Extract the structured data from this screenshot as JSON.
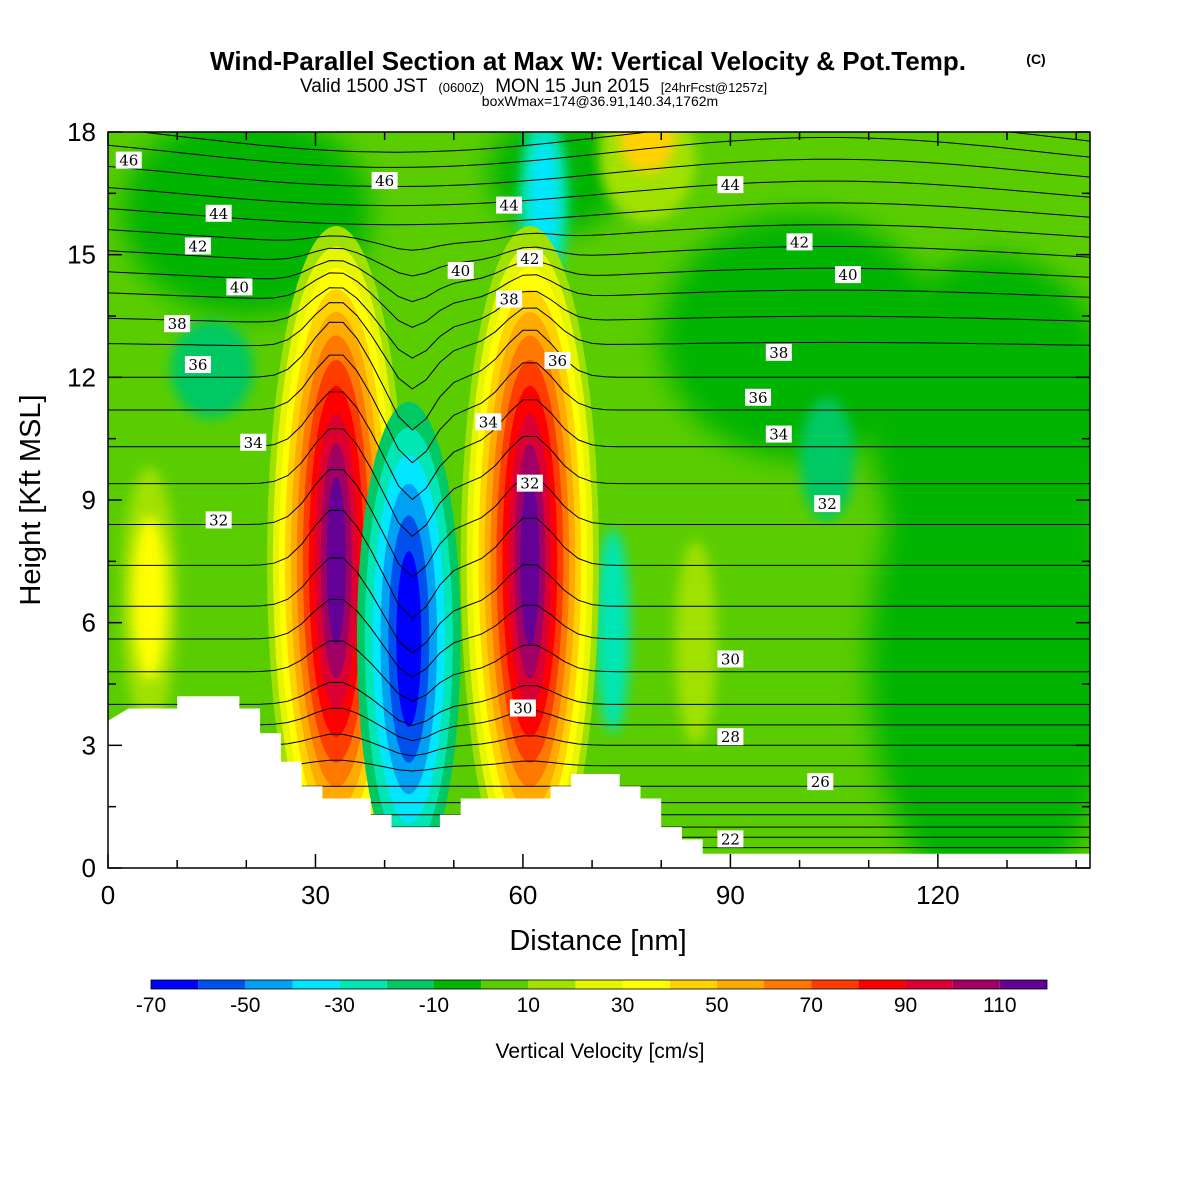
{
  "title": {
    "main": "Wind-Parallel Section at Max W: Vertical Velocity & Pot.Temp.",
    "copyright": "(C)",
    "valid_prefix": "Valid 1500 JST",
    "valid_utc": "(0600Z)",
    "valid_date": "MON 15 Jun 2015",
    "forecast": "[24hrFcst@1257z]",
    "box_info": "boxWmax=174@36.91,140.34,1762m"
  },
  "chart_data": {
    "type": "heatmap",
    "xlabel": "Distance [nm]",
    "ylabel": "Height [Kft MSL]",
    "xlim": [
      0,
      142
    ],
    "ylim": [
      0,
      18
    ],
    "x_ticks": [
      0,
      30,
      60,
      90,
      120
    ],
    "y_ticks": [
      0,
      3,
      6,
      9,
      12,
      15,
      18
    ],
    "colorbar": {
      "title": "Vertical Velocity [cm/s]",
      "tick_labels": [
        "-70",
        "-50",
        "-30",
        "-10",
        "10",
        "30",
        "50",
        "70",
        "90",
        "110"
      ],
      "boundaries": [
        -70,
        -60,
        -50,
        -40,
        -30,
        -20,
        -10,
        0,
        10,
        20,
        30,
        40,
        50,
        60,
        70,
        80,
        90,
        100,
        110,
        120
      ],
      "colors": [
        "#0000ff",
        "#0050f0",
        "#00a0f5",
        "#00e6ff",
        "#00e6b4",
        "#00c864",
        "#00b400",
        "#5acd00",
        "#a0e100",
        "#e6f500",
        "#ffff00",
        "#ffd200",
        "#ffaa00",
        "#ff7800",
        "#ff3c00",
        "#ff0000",
        "#dc0032",
        "#a00064",
        "#640096"
      ]
    },
    "updrafts": [
      {
        "x": 33,
        "y": 7,
        "peak": 174
      },
      {
        "x": 61,
        "y": 7,
        "peak": 130
      }
    ],
    "downdrafts": [
      {
        "x": 43.5,
        "y": 5,
        "peak": -70
      }
    ],
    "terrain_kft": [
      [
        0,
        3.6
      ],
      [
        3,
        3.9
      ],
      [
        10,
        3.9
      ],
      [
        10,
        4.2
      ],
      [
        19,
        4.2
      ],
      [
        19,
        3.9
      ],
      [
        22,
        3.9
      ],
      [
        22,
        3.3
      ],
      [
        25,
        3.3
      ],
      [
        25,
        2.6
      ],
      [
        28,
        2.6
      ],
      [
        28,
        2.0
      ],
      [
        31,
        2.0
      ],
      [
        31,
        1.7
      ],
      [
        38,
        1.7
      ],
      [
        38,
        1.3
      ],
      [
        41,
        1.3
      ],
      [
        41,
        1.0
      ],
      [
        48,
        1.0
      ],
      [
        48,
        1.3
      ],
      [
        51,
        1.3
      ],
      [
        51,
        1.7
      ],
      [
        64,
        1.7
      ],
      [
        64,
        2.0
      ],
      [
        67,
        2.0
      ],
      [
        67,
        2.3
      ],
      [
        74,
        2.3
      ],
      [
        74,
        2.0
      ],
      [
        77,
        2.0
      ],
      [
        77,
        1.7
      ],
      [
        80,
        1.7
      ],
      [
        80,
        1.0
      ],
      [
        83,
        1.0
      ],
      [
        83,
        0.7
      ],
      [
        86,
        0.7
      ],
      [
        86,
        0.35
      ],
      [
        142,
        0.35
      ]
    ],
    "theta_contours": [
      {
        "label": "22",
        "x": 90,
        "y": 0.7
      },
      {
        "label": "26",
        "x": 103,
        "y": 2.1
      },
      {
        "label": "28",
        "x": 90,
        "y": 3.2
      },
      {
        "label": "30",
        "x": 60,
        "y": 3.9
      },
      {
        "label": "30",
        "x": 90,
        "y": 5.1
      },
      {
        "label": "32",
        "x": 16,
        "y": 8.5
      },
      {
        "label": "32",
        "x": 61,
        "y": 9.4
      },
      {
        "label": "32",
        "x": 104,
        "y": 8.9
      },
      {
        "label": "34",
        "x": 21,
        "y": 10.4
      },
      {
        "label": "34",
        "x": 55,
        "y": 10.9
      },
      {
        "label": "34",
        "x": 97,
        "y": 10.6
      },
      {
        "label": "36",
        "x": 13,
        "y": 12.3
      },
      {
        "label": "36",
        "x": 65,
        "y": 12.4
      },
      {
        "label": "36",
        "x": 94,
        "y": 11.5
      },
      {
        "label": "38",
        "x": 10,
        "y": 13.3
      },
      {
        "label": "38",
        "x": 58,
        "y": 13.9
      },
      {
        "label": "38",
        "x": 97,
        "y": 12.6
      },
      {
        "label": "40",
        "x": 19,
        "y": 14.2
      },
      {
        "label": "40",
        "x": 51,
        "y": 14.6
      },
      {
        "label": "40",
        "x": 107,
        "y": 14.5
      },
      {
        "label": "42",
        "x": 13,
        "y": 15.2
      },
      {
        "label": "42",
        "x": 61,
        "y": 14.9
      },
      {
        "label": "42",
        "x": 100,
        "y": 15.3
      },
      {
        "label": "44",
        "x": 16,
        "y": 16.0
      },
      {
        "label": "44",
        "x": 58,
        "y": 16.2
      },
      {
        "label": "44",
        "x": 90,
        "y": 16.7
      },
      {
        "label": "46",
        "x": 3,
        "y": 17.3
      },
      {
        "label": "46",
        "x": 40,
        "y": 16.8
      }
    ]
  }
}
